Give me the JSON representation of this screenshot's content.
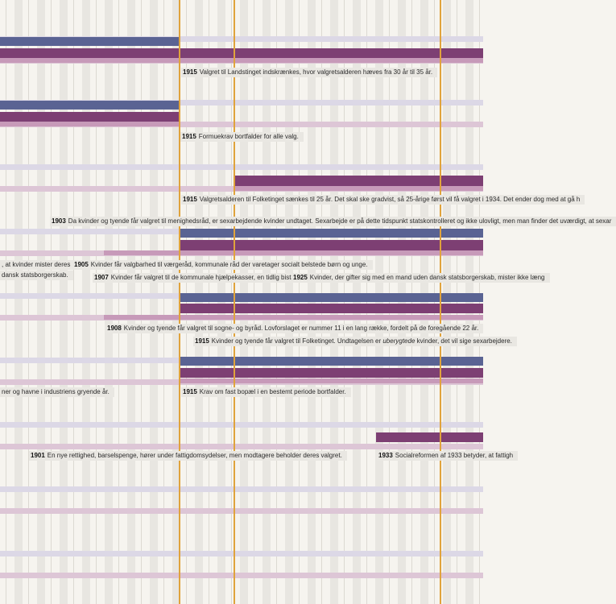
{
  "timeline": {
    "notes": [
      {
        "year": "1915",
        "text": "Valgret til Landstinget indskrænkes, hvor valgretsalderen hæves fra 30 år til 35 år."
      },
      {
        "year": "1915",
        "text": "Formuekrav bortfalder for alle valg."
      },
      {
        "year": "1915",
        "text": "Valgretsalderen til Folketinget sænkes til 25 år. Det skal ske gradvist, så 25-årige først vil få valgret i 1934. Det ender dog med at gå h"
      },
      {
        "year": "1903",
        "text": "Da kvinder og tyende får valgret til menighedsråd, er sexarbejdende kvinder undtaget. Sexarbejde er på dette tidspunkt statskontrolleret og ikke ulovligt, men man finder det uværdigt, at sexar"
      },
      {
        "year": "",
        "text": ", at kvinder mister deres"
      },
      {
        "year": "",
        "text": "dansk statsborgerskab."
      },
      {
        "year": "1905",
        "text": "Kvinder får valgbarhed til værgeråd, kommunale råd der varetager socialt belstede børn og unge."
      },
      {
        "year": "1907",
        "text": "Kvinder får valgret til de kommunale hjælpekasser, en tidlig bistandshjælp."
      },
      {
        "year": "1925",
        "text": "Kvinder, der gifter sig med en mand uden dansk statsborgerskab, mister ikke læng"
      },
      {
        "year": "1908",
        "text": "Kvinder og tyende får valgret til sogne- og byråd. Lovforslaget er nummer 11 i en lang række, fordelt på de foregående 22 år."
      },
      {
        "year": "1915",
        "text_a": "Kvinder og tyende får valgret til Folketinget. Undtagelsen er ",
        "text_em": "uberygtede",
        "text_b": " kvinder, det vil sige sexarbejdere."
      },
      {
        "year": "",
        "text": "ner og havne i industriens gryende år."
      },
      {
        "year": "1915",
        "text": "Krav om fast bopæl i en bestemt periode bortfalder."
      },
      {
        "year": "1901",
        "text": "En nye rettighed, barselspenge, hører under fattigdomsydelser, men modtagere beholder deres valgret."
      },
      {
        "year": "1933",
        "text": "Socialreformen af 1933 betyder, at fattigh"
      }
    ]
  },
  "colors": {
    "background": "#f6f4ef",
    "column_shade": "#e8e6e1",
    "lavender_stripe": "#dcd8e6",
    "pink_stripe": "#ddc6d6",
    "blue_bar": "#5a6393",
    "purple_bar": "#7d3f73",
    "pink_bar": "#c79ab9",
    "year_line": "#e0a33c",
    "label_bg": "#e9e7e2"
  }
}
